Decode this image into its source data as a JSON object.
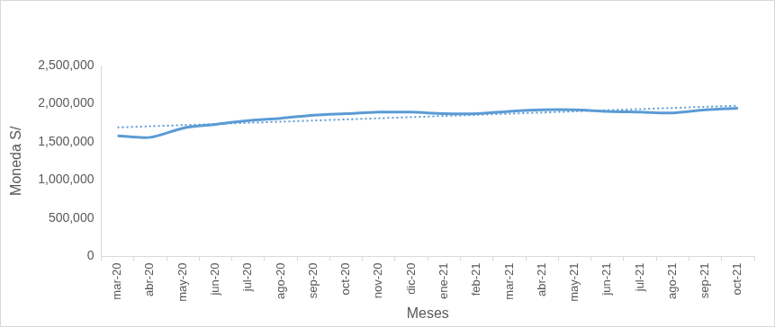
{
  "chart_data": {
    "type": "line",
    "x_label": "Meses",
    "y_label": "Moneda S/",
    "categories": [
      "mar-20",
      "abr-20",
      "may-20",
      "jun-20",
      "jul-20",
      "ago-20",
      "sep-20",
      "oct-20",
      "nov-20",
      "dic-20",
      "ene-21",
      "feb-21",
      "mar-21",
      "abr-21",
      "may-21",
      "jun-21",
      "jul-21",
      "ago-21",
      "sep-21",
      "oct-21"
    ],
    "series": [
      {
        "color": "#5b9bd5",
        "line_style": "solid",
        "values": [
          1580000,
          1560000,
          1680000,
          1730000,
          1780000,
          1810000,
          1850000,
          1870000,
          1890000,
          1890000,
          1870000,
          1870000,
          1900000,
          1920000,
          1920000,
          1900000,
          1890000,
          1880000,
          1920000,
          1940000
        ]
      },
      {
        "color": "#5b9bd5",
        "line_style": "dotted",
        "values": [
          1690000,
          1705000,
          1720000,
          1735000,
          1750000,
          1765000,
          1780000,
          1795000,
          1810000,
          1825000,
          1840000,
          1855000,
          1870000,
          1885000,
          1900000,
          1915000,
          1930000,
          1945000,
          1960000,
          1975000
        ]
      }
    ],
    "ylim": [
      0,
      2500000
    ],
    "yticks": [
      0,
      {
        "value": 500000,
        "label": "500,000"
      },
      {
        "value": 1000000,
        "label": "1,000,000"
      },
      {
        "value": 1500000,
        "label": "1,500,000"
      },
      {
        "value": 2000000,
        "label": "2,000,000"
      },
      {
        "value": 2500000,
        "label": "2,500,000"
      }
    ],
    "grid": false
  }
}
